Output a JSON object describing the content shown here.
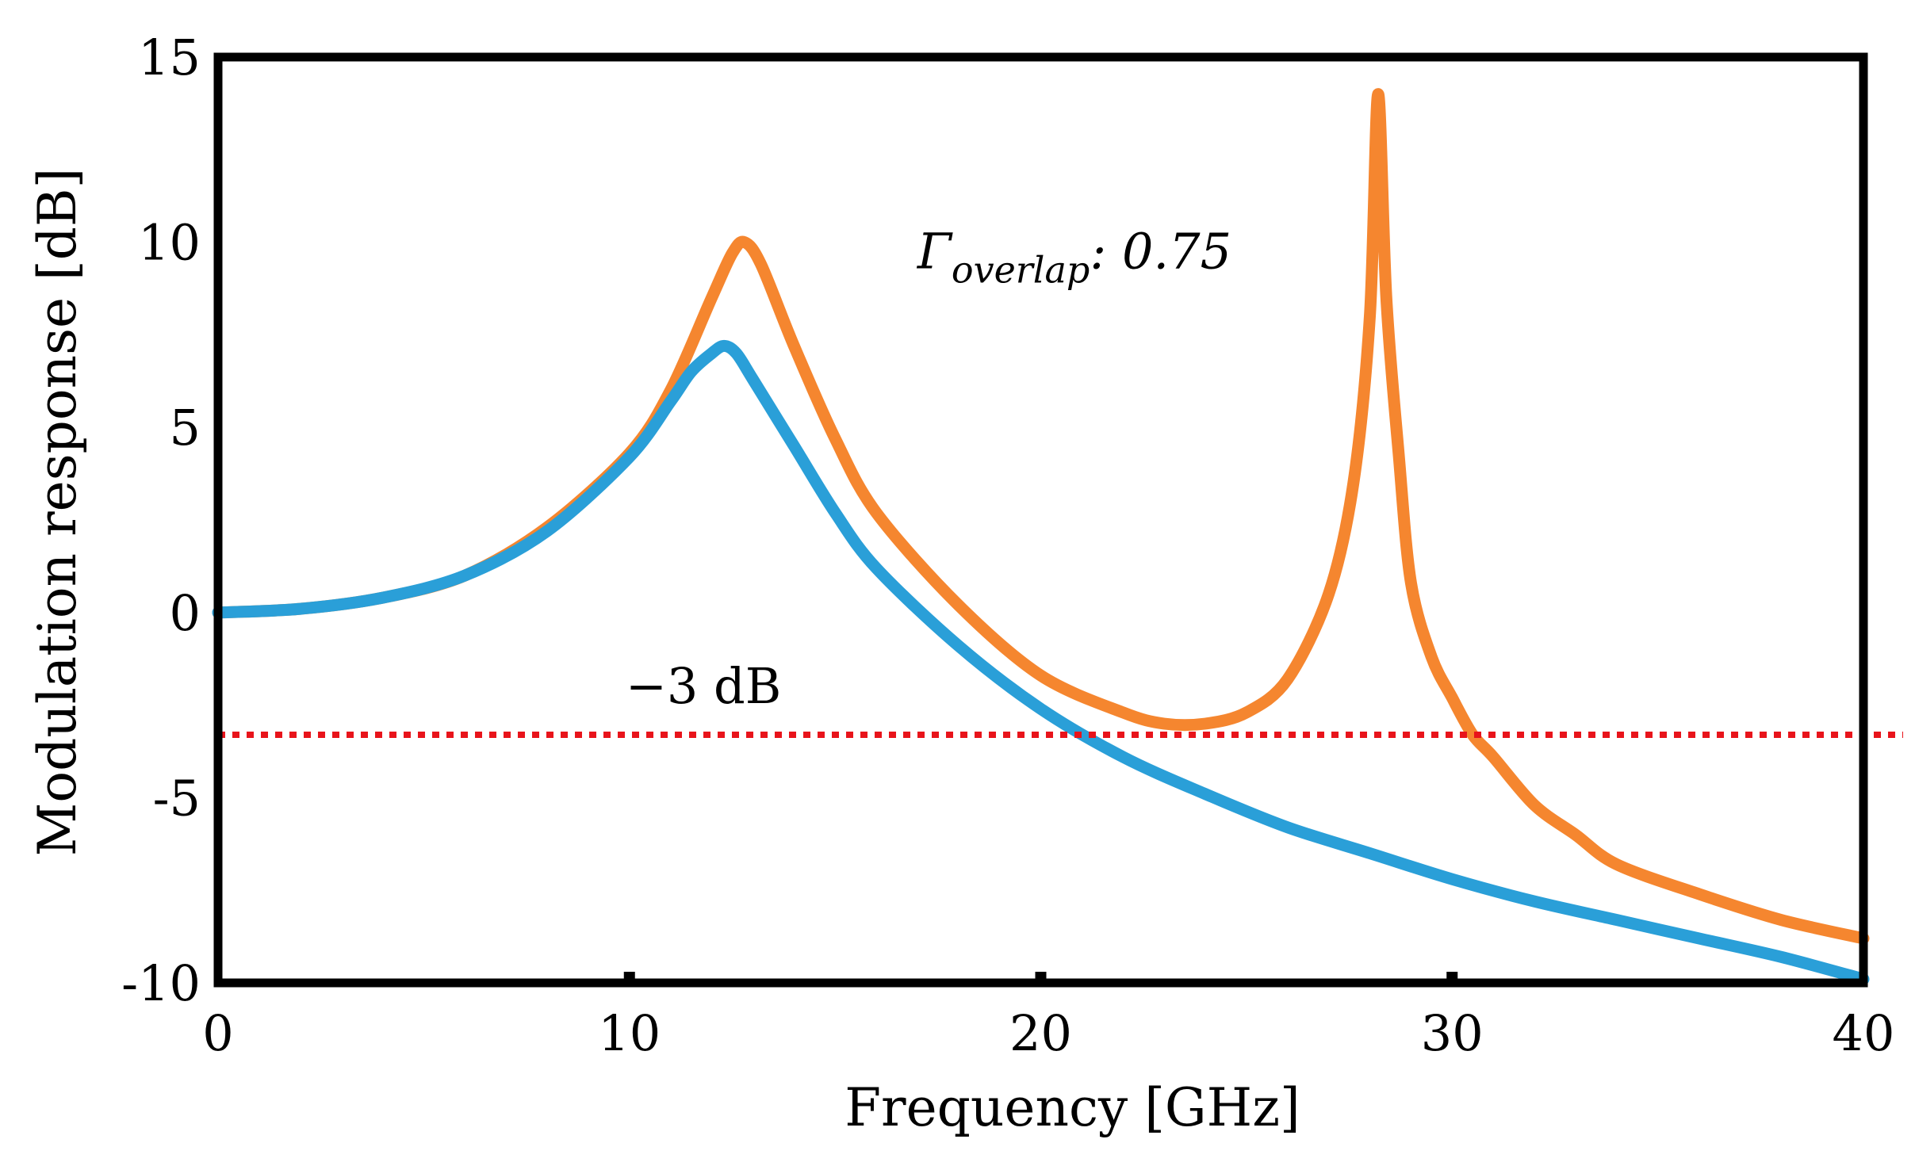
{
  "chart_data": {
    "type": "line",
    "title": "",
    "xlabel": "Frequency [GHz]",
    "ylabel": "Modulation response [dB]",
    "xlim": [
      0,
      40
    ],
    "ylim": [
      -10,
      15
    ],
    "xticks": [
      0,
      10,
      20,
      30,
      40
    ],
    "yticks": [
      -10,
      -5,
      0,
      5,
      10,
      15
    ],
    "xtick_labels": [
      "0",
      "10",
      "20",
      "30",
      "40"
    ],
    "ytick_labels": [
      "-10",
      "-5",
      "0",
      "5",
      "10",
      "15"
    ],
    "grid": false,
    "reference_line": {
      "y": -3.3,
      "label": "−3 dB",
      "color": "#e8141b"
    },
    "annotation": {
      "text": "Γ",
      "subscript": "overlap",
      "suffix": ": 0.75"
    },
    "series": [
      {
        "name": "orange",
        "color": "#f5862f",
        "x": [
          0,
          2,
          4,
          6,
          8,
          10,
          11,
          12,
          12.5,
          12.8,
          13.2,
          14,
          15,
          16,
          18,
          20,
          22,
          23,
          24,
          25,
          26,
          27,
          27.6,
          28,
          28.2,
          28.4,
          28.7,
          29,
          29.5,
          30,
          30.5,
          31,
          32,
          33,
          34,
          36,
          38,
          40
        ],
        "values": [
          0,
          0.1,
          0.4,
          1.0,
          2.3,
          4.3,
          6.0,
          8.5,
          9.7,
          10.0,
          9.4,
          7.2,
          4.7,
          2.7,
          0.2,
          -1.7,
          -2.7,
          -3.0,
          -3.0,
          -2.7,
          -1.8,
          0.5,
          3.5,
          8.0,
          14.0,
          8.5,
          4.3,
          0.8,
          -1.2,
          -2.3,
          -3.3,
          -3.9,
          -5.2,
          -6.0,
          -6.8,
          -7.6,
          -8.3,
          -8.8
        ]
      },
      {
        "name": "blue",
        "color": "#2a9fd8",
        "x": [
          0,
          2,
          4,
          6,
          8,
          10,
          11,
          11.5,
          12,
          12.3,
          12.6,
          13,
          14,
          15,
          16,
          18,
          20,
          22,
          24,
          26,
          28,
          30,
          32,
          34,
          36,
          38,
          40
        ],
        "values": [
          0,
          0.1,
          0.4,
          1.0,
          2.2,
          4.2,
          5.7,
          6.5,
          7.0,
          7.2,
          7.0,
          6.3,
          4.5,
          2.7,
          1.2,
          -0.9,
          -2.6,
          -3.9,
          -4.9,
          -5.8,
          -6.5,
          -7.2,
          -7.8,
          -8.3,
          -8.8,
          -9.3,
          -9.9
        ]
      }
    ]
  }
}
